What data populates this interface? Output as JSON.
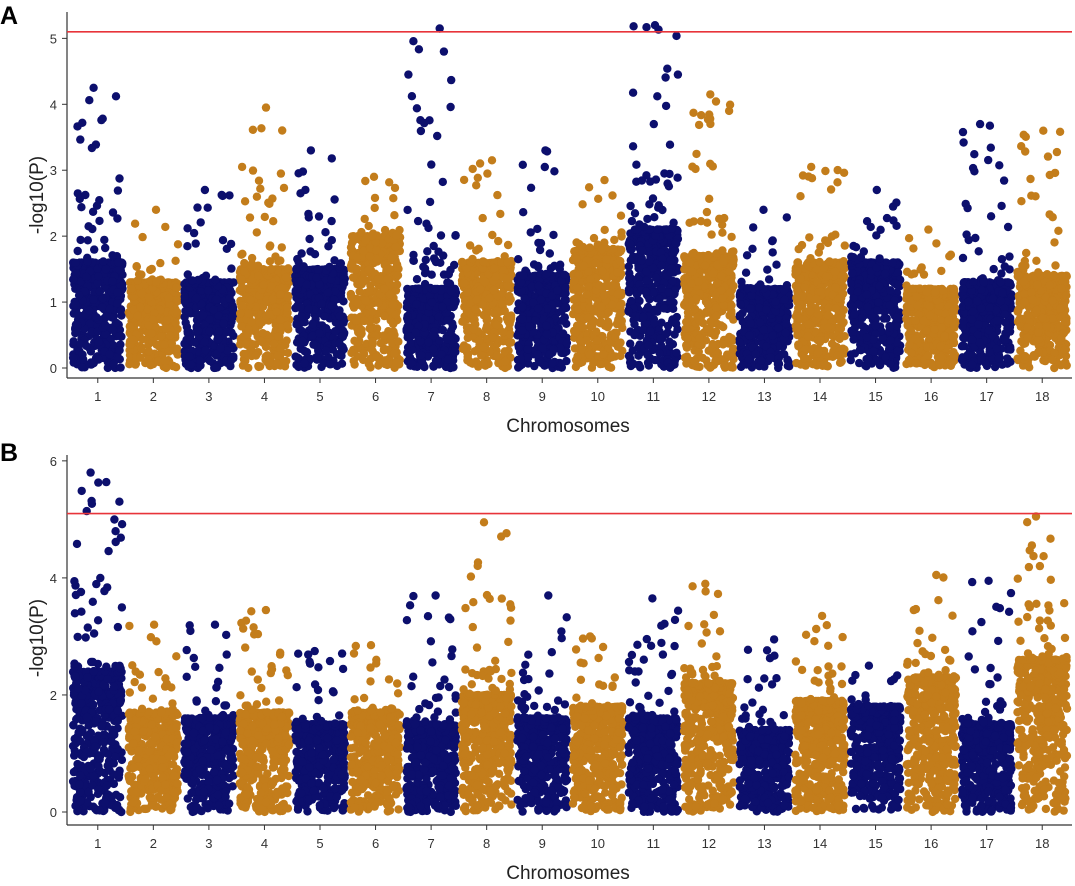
{
  "chart_data": [
    {
      "panel_label": "A",
      "type": "scatter",
      "subtype": "manhattan",
      "xlabel": "Chromosomes",
      "ylabel": "-log10(P)",
      "ylim": [
        0,
        5.4
      ],
      "yticks": [
        0,
        1,
        2,
        3,
        4,
        5
      ],
      "threshold": 5.1,
      "threshold_color": "#e8343a",
      "colors": [
        "#0c0f6d",
        "#c37d1b"
      ],
      "grid": false,
      "chromosomes": [
        {
          "label": "1",
          "dense_top": 1.6,
          "max": 4.25
        },
        {
          "label": "2",
          "dense_top": 1.3,
          "max": 2.4
        },
        {
          "label": "3",
          "dense_top": 1.3,
          "max": 2.7
        },
        {
          "label": "4",
          "dense_top": 1.5,
          "max": 3.95
        },
        {
          "label": "5",
          "dense_top": 1.5,
          "max": 3.3
        },
        {
          "label": "6",
          "dense_top": 2.0,
          "max": 2.9
        },
        {
          "label": "7",
          "dense_top": 1.2,
          "max": 5.15
        },
        {
          "label": "8",
          "dense_top": 1.6,
          "max": 3.15
        },
        {
          "label": "9",
          "dense_top": 1.4,
          "max": 3.3
        },
        {
          "label": "10",
          "dense_top": 1.8,
          "max": 2.85
        },
        {
          "label": "11",
          "dense_top": 2.1,
          "max": 5.2
        },
        {
          "label": "12",
          "dense_top": 1.7,
          "max": 4.15
        },
        {
          "label": "13",
          "dense_top": 1.2,
          "max": 2.4
        },
        {
          "label": "14",
          "dense_top": 1.6,
          "max": 3.05
        },
        {
          "label": "15",
          "dense_top": 1.6,
          "max": 2.7
        },
        {
          "label": "16",
          "dense_top": 1.2,
          "max": 2.1
        },
        {
          "label": "17",
          "dense_top": 1.3,
          "max": 3.7
        },
        {
          "label": "18",
          "dense_top": 1.4,
          "max": 3.6
        }
      ]
    },
    {
      "panel_label": "B",
      "type": "scatter",
      "subtype": "manhattan",
      "xlabel": "Chromosomes",
      "ylabel": "-log10(P)",
      "ylim": [
        0,
        6.1
      ],
      "yticks": [
        0,
        2,
        4,
        6
      ],
      "threshold": 5.1,
      "threshold_color": "#e8343a",
      "colors": [
        "#0c0f6d",
        "#c37d1b"
      ],
      "grid": false,
      "chromosomes": [
        {
          "label": "1",
          "dense_top": 2.4,
          "max": 5.8
        },
        {
          "label": "2",
          "dense_top": 1.7,
          "max": 3.2
        },
        {
          "label": "3",
          "dense_top": 1.6,
          "max": 3.2
        },
        {
          "label": "4",
          "dense_top": 1.7,
          "max": 3.45
        },
        {
          "label": "5",
          "dense_top": 1.5,
          "max": 2.75
        },
        {
          "label": "6",
          "dense_top": 1.7,
          "max": 2.85
        },
        {
          "label": "7",
          "dense_top": 1.5,
          "max": 3.7
        },
        {
          "label": "8",
          "dense_top": 2.0,
          "max": 4.95
        },
        {
          "label": "9",
          "dense_top": 1.6,
          "max": 3.7
        },
        {
          "label": "10",
          "dense_top": 1.8,
          "max": 3.0
        },
        {
          "label": "11",
          "dense_top": 1.6,
          "max": 3.65
        },
        {
          "label": "12",
          "dense_top": 2.2,
          "max": 3.9
        },
        {
          "label": "13",
          "dense_top": 1.4,
          "max": 2.95
        },
        {
          "label": "14",
          "dense_top": 1.9,
          "max": 3.35
        },
        {
          "label": "15",
          "dense_top": 1.8,
          "max": 2.5
        },
        {
          "label": "16",
          "dense_top": 2.3,
          "max": 4.05
        },
        {
          "label": "17",
          "dense_top": 1.5,
          "max": 3.95
        },
        {
          "label": "18",
          "dense_top": 2.6,
          "max": 5.05
        }
      ]
    }
  ]
}
